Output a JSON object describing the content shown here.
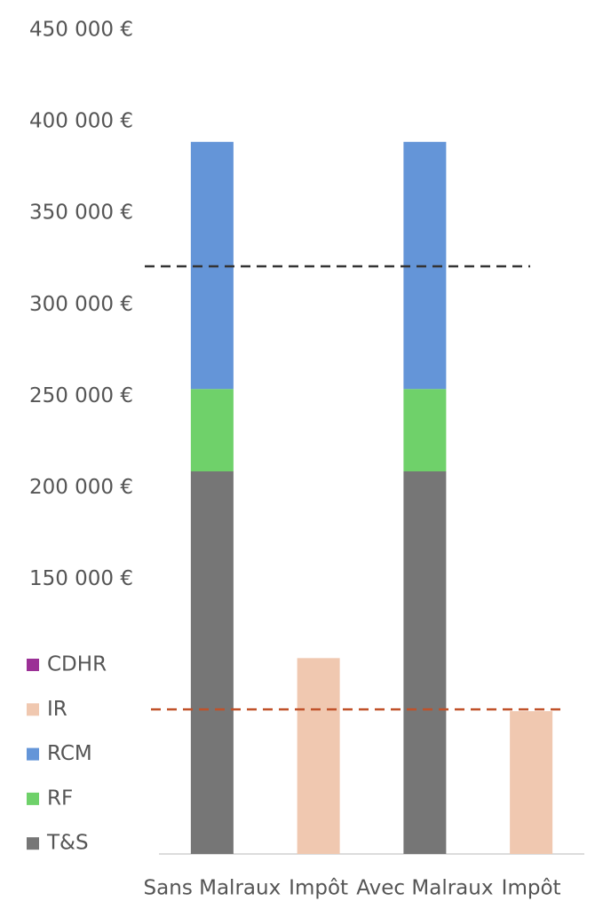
{
  "chart_data": {
    "type": "stacked_bar",
    "categories": [
      "Sans Malraux",
      "Impôt",
      "Avec Malraux",
      "Impôt"
    ],
    "series": [
      {
        "name": "T&S",
        "color": "#767676",
        "values": [
          209000,
          null,
          209000,
          null
        ]
      },
      {
        "name": "RF",
        "color": "#6fd16a",
        "values": [
          45000,
          null,
          45000,
          null
        ]
      },
      {
        "name": "RCM",
        "color": "#6495d8",
        "values": [
          135000,
          null,
          135000,
          null
        ]
      },
      {
        "name": "IR",
        "color": "#f0c8b0",
        "values": [
          null,
          107000,
          null,
          78000
        ]
      },
      {
        "name": "CDHR",
        "color": "#9b3096",
        "values": [
          null,
          null,
          null,
          null
        ]
      }
    ],
    "ylim": [
      0,
      450000
    ],
    "yticks": [
      {
        "value": 150000,
        "label": "150 000 €"
      },
      {
        "value": 200000,
        "label": "200 000 €"
      },
      {
        "value": 250000,
        "label": "250 000 €"
      },
      {
        "value": 300000,
        "label": "300 000 €"
      },
      {
        "value": 350000,
        "label": "350 000 €"
      },
      {
        "value": 400000,
        "label": "400 000 €"
      },
      {
        "value": 450000,
        "label": "450 000 €"
      }
    ],
    "reference_lines": [
      {
        "value": 321000,
        "color": "#333333"
      },
      {
        "value": 79000,
        "color": "#c0522a"
      }
    ],
    "legend": "left",
    "grid": false
  }
}
